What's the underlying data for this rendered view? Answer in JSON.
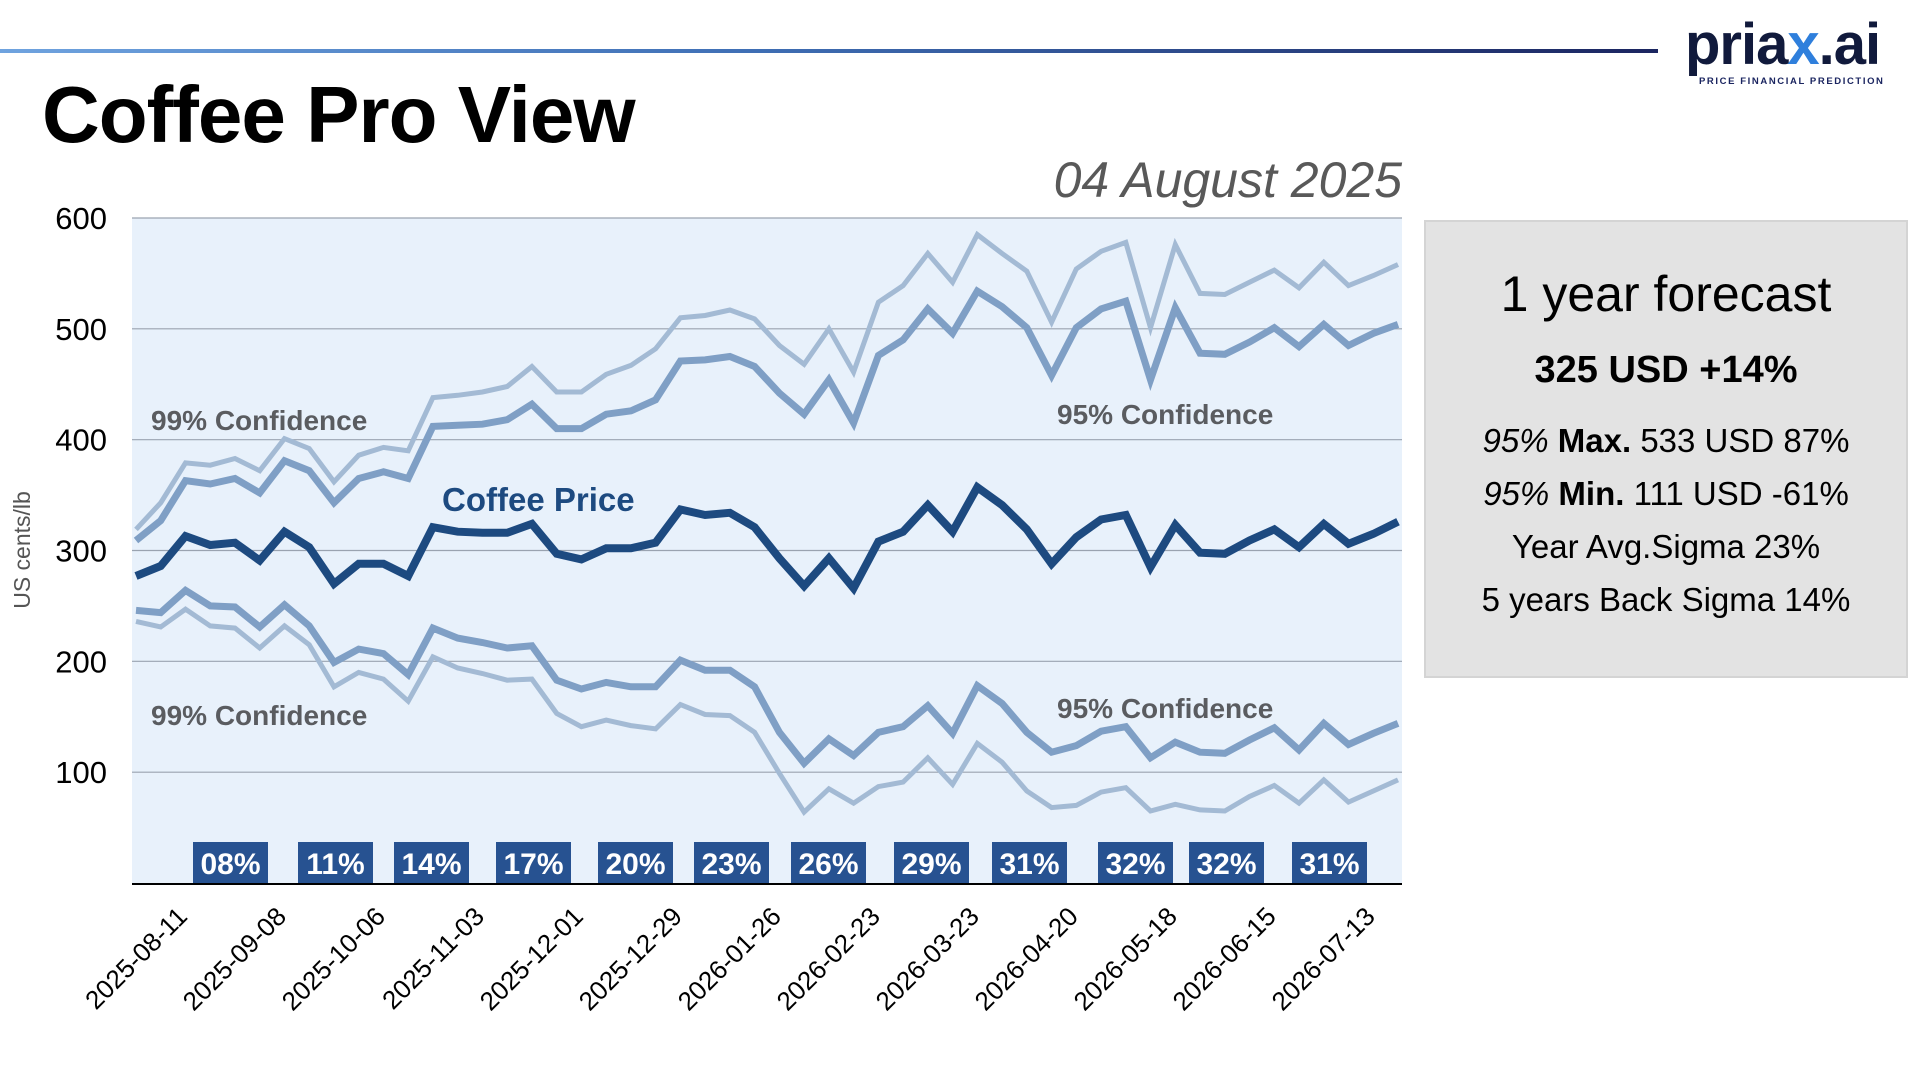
{
  "brand": {
    "logo_main": "priax",
    "logo_dot_ai": ".ai",
    "logo_x": "x",
    "logo_prefix": "pria",
    "tagline": "PRICE FINANCIAL PREDICTION"
  },
  "page": {
    "title": "Coffee Pro View",
    "date": "04 August 2025"
  },
  "forecast_panel": {
    "title": "1 year forecast",
    "headline": "325 USD +14%",
    "max_line": {
      "prefix": "95%",
      "label": "Max.",
      "value": "533 USD 87%"
    },
    "min_line": {
      "prefix": "95%",
      "label": "Min.",
      "value": "111 USD -61%"
    },
    "year_avg_sigma": "Year Avg.Sigma 23%",
    "back_sigma": "5 years Back Sigma 14%"
  },
  "colors": {
    "price": "#1d4a80",
    "conf95": "#7f9fc5",
    "conf99": "#a3bad4",
    "plot_bg": "#e8f1fb",
    "grid": "#9aa3b0",
    "sigma_badge": "#275291",
    "band_label": "#5a5c60"
  },
  "chart_data": {
    "type": "line",
    "title": "Coffee Pro View",
    "xlabel": "",
    "ylabel": "US cents/lb",
    "ylim": [
      0,
      600
    ],
    "yticks": [
      100,
      200,
      300,
      400,
      500,
      600
    ],
    "grid": true,
    "x_tick_labels": [
      "2025-08-11",
      "2025-09-08",
      "2025-10-06",
      "2025-11-03",
      "2025-12-01",
      "2025-12-29",
      "2026-01-26",
      "2026-02-23",
      "2026-03-23",
      "2026-04-20",
      "2026-05-18",
      "2026-06-15",
      "2026-07-13"
    ],
    "x_tick_first_index": 1,
    "x_tick_step": 4,
    "series": [
      {
        "name": "99% Confidence Upper",
        "role": "conf99",
        "values": [
          319,
          343,
          379,
          377,
          383,
          372,
          401,
          392,
          362,
          386,
          393,
          390,
          438,
          440,
          443,
          448,
          466,
          443,
          443,
          459,
          467,
          482,
          510,
          512,
          517,
          509,
          485,
          468,
          500,
          461,
          524,
          539,
          568,
          542,
          585,
          568,
          552,
          506,
          554,
          570,
          578,
          501,
          576,
          532,
          531,
          542,
          553,
          537,
          560,
          539,
          548,
          558
        ]
      },
      {
        "name": "95% Confidence Upper",
        "role": "conf95",
        "values": [
          309,
          327,
          363,
          360,
          365,
          352,
          381,
          372,
          343,
          365,
          371,
          365,
          412,
          413,
          414,
          418,
          432,
          410,
          410,
          423,
          426,
          436,
          471,
          472,
          475,
          466,
          442,
          423,
          454,
          415,
          476,
          490,
          518,
          496,
          534,
          520,
          501,
          458,
          501,
          518,
          525,
          454,
          519,
          478,
          477,
          488,
          501,
          484,
          504,
          485,
          496,
          504
        ]
      },
      {
        "name": "Coffee Price",
        "role": "price",
        "values": [
          277,
          286,
          313,
          305,
          307,
          291,
          317,
          303,
          270,
          288,
          288,
          277,
          321,
          317,
          316,
          316,
          324,
          297,
          292,
          302,
          302,
          307,
          337,
          332,
          334,
          321,
          293,
          268,
          293,
          266,
          308,
          317,
          341,
          317,
          357,
          341,
          319,
          288,
          312,
          328,
          332,
          285,
          323,
          298,
          297,
          309,
          319,
          303,
          324,
          306,
          315,
          326
        ]
      },
      {
        "name": "95% Confidence Lower",
        "role": "conf95",
        "values": [
          246,
          244,
          264,
          250,
          249,
          231,
          251,
          232,
          199,
          211,
          207,
          188,
          230,
          221,
          217,
          212,
          214,
          183,
          175,
          181,
          177,
          177,
          201,
          192,
          192,
          177,
          136,
          108,
          130,
          115,
          136,
          141,
          160,
          135,
          178,
          162,
          136,
          118,
          124,
          137,
          141,
          113,
          127,
          118,
          117,
          129,
          140,
          120,
          144,
          125,
          135,
          144
        ]
      },
      {
        "name": "99% Confidence Lower",
        "role": "conf99",
        "values": [
          236,
          231,
          247,
          232,
          230,
          212,
          232,
          215,
          177,
          190,
          184,
          164,
          204,
          194,
          189,
          183,
          184,
          153,
          141,
          147,
          142,
          139,
          161,
          152,
          151,
          136,
          99,
          64,
          85,
          72,
          87,
          91,
          113,
          89,
          126,
          109,
          83,
          68,
          70,
          82,
          86,
          65,
          71,
          66,
          65,
          78,
          88,
          72,
          93,
          73,
          83,
          93
        ]
      }
    ],
    "annotations": [
      {
        "text": "99% Confidence",
        "near": "upper-left"
      },
      {
        "text": "99% Confidence",
        "near": "lower-left"
      },
      {
        "text": "95% Confidence",
        "near": "upper-right"
      },
      {
        "text": "95% Confidence",
        "near": "lower-right"
      },
      {
        "text": "Coffee Price",
        "near": "center-left"
      }
    ],
    "sigma_badges": [
      {
        "label": "08%",
        "value": 8
      },
      {
        "label": "11%",
        "value": 11
      },
      {
        "label": "14%",
        "value": 14
      },
      {
        "label": "17%",
        "value": 17
      },
      {
        "label": "20%",
        "value": 20
      },
      {
        "label": "23%",
        "value": 23
      },
      {
        "label": "26%",
        "value": 26
      },
      {
        "label": "29%",
        "value": 29
      },
      {
        "label": "31%",
        "value": 31
      },
      {
        "label": "32%",
        "value": 32
      },
      {
        "label": "32%",
        "value": 32
      },
      {
        "label": "31%",
        "value": 31
      }
    ],
    "legend": "none"
  }
}
